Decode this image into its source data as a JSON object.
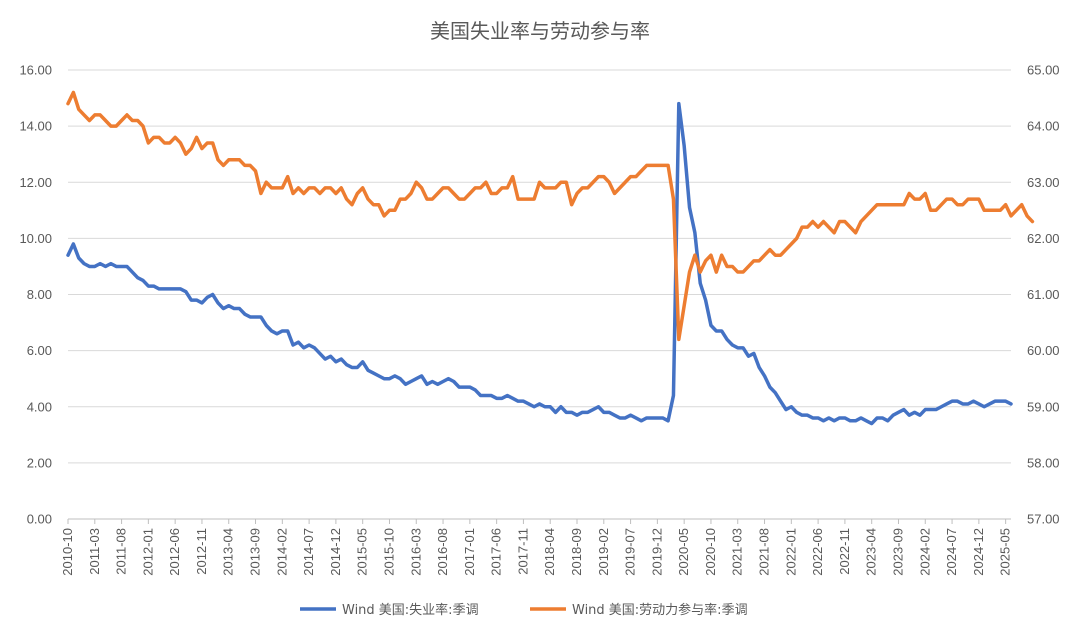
{
  "chart_data": {
    "type": "line",
    "title": "美国失业率与劳动参与率",
    "x_tick_labels": [
      "2010-10",
      "2011-03",
      "2011-08",
      "2012-01",
      "2012-06",
      "2012-11",
      "2013-04",
      "2013-09",
      "2014-02",
      "2014-07",
      "2014-12",
      "2015-05",
      "2015-10",
      "2016-03",
      "2016-08",
      "2017-01",
      "2017-06",
      "2017-11",
      "2018-04",
      "2018-09",
      "2019-02",
      "2019-07",
      "2019-12",
      "2020-05",
      "2020-10",
      "2021-03",
      "2021-08",
      "2022-01",
      "2022-06",
      "2022-11",
      "2023-04",
      "2023-09",
      "2024-02",
      "2024-07",
      "2024-12",
      "2025-05"
    ],
    "y_left": {
      "range": [
        0,
        16
      ],
      "ticks": [
        "0.00",
        "2.00",
        "4.00",
        "6.00",
        "8.00",
        "10.00",
        "12.00",
        "14.00",
        "16.00"
      ]
    },
    "y_right": {
      "range": [
        57,
        65
      ],
      "ticks": [
        "57.00",
        "58.00",
        "59.00",
        "60.00",
        "61.00",
        "62.00",
        "63.00",
        "64.00",
        "65.00"
      ]
    },
    "grid": true,
    "legend_position": "bottom",
    "x_start": "2010-10",
    "series": [
      {
        "name": "Wind 美国:失业率:季调",
        "axis": "left",
        "color": "#4472C4",
        "values": [
          9.4,
          9.8,
          9.3,
          9.1,
          9.0,
          9.0,
          9.1,
          9.0,
          9.1,
          9.0,
          9.0,
          9.0,
          8.8,
          8.6,
          8.5,
          8.3,
          8.3,
          8.2,
          8.2,
          8.2,
          8.2,
          8.2,
          8.1,
          7.8,
          7.8,
          7.7,
          7.9,
          8.0,
          7.7,
          7.5,
          7.6,
          7.5,
          7.5,
          7.3,
          7.2,
          7.2,
          7.2,
          6.9,
          6.7,
          6.6,
          6.7,
          6.7,
          6.2,
          6.3,
          6.1,
          6.2,
          6.1,
          5.9,
          5.7,
          5.8,
          5.6,
          5.7,
          5.5,
          5.4,
          5.4,
          5.6,
          5.3,
          5.2,
          5.1,
          5.0,
          5.0,
          5.1,
          5.0,
          4.8,
          4.9,
          5.0,
          5.1,
          4.8,
          4.9,
          4.8,
          4.9,
          5.0,
          4.9,
          4.7,
          4.7,
          4.7,
          4.6,
          4.4,
          4.4,
          4.4,
          4.3,
          4.3,
          4.4,
          4.3,
          4.2,
          4.2,
          4.1,
          4.0,
          4.1,
          4.0,
          4.0,
          3.8,
          4.0,
          3.8,
          3.8,
          3.7,
          3.8,
          3.8,
          3.9,
          4.0,
          3.8,
          3.8,
          3.7,
          3.6,
          3.6,
          3.7,
          3.6,
          3.5,
          3.6,
          3.6,
          3.6,
          3.6,
          3.5,
          4.4,
          14.8,
          13.3,
          11.1,
          10.2,
          8.4,
          7.8,
          6.9,
          6.7,
          6.7,
          6.4,
          6.2,
          6.1,
          6.1,
          5.8,
          5.9,
          5.4,
          5.1,
          4.7,
          4.5,
          4.2,
          3.9,
          4.0,
          3.8,
          3.7,
          3.7,
          3.6,
          3.6,
          3.5,
          3.6,
          3.5,
          3.6,
          3.6,
          3.5,
          3.5,
          3.6,
          3.5,
          3.4,
          3.6,
          3.6,
          3.5,
          3.7,
          3.8,
          3.9,
          3.7,
          3.8,
          3.7,
          3.9,
          3.9,
          3.9,
          4.0,
          4.1,
          4.2,
          4.2,
          4.1,
          4.1,
          4.2,
          4.1,
          4.0,
          4.1,
          4.2,
          4.2,
          4.2,
          4.1
        ]
      },
      {
        "name": "Wind 美国:劳动力参与率:季调",
        "axis": "right",
        "color": "#ED7D31",
        "values": [
          64.4,
          64.6,
          64.3,
          64.2,
          64.1,
          64.2,
          64.2,
          64.1,
          64.0,
          64.0,
          64.1,
          64.2,
          64.1,
          64.1,
          64.0,
          63.7,
          63.8,
          63.8,
          63.7,
          63.7,
          63.8,
          63.7,
          63.5,
          63.6,
          63.8,
          63.6,
          63.7,
          63.7,
          63.4,
          63.3,
          63.4,
          63.4,
          63.4,
          63.3,
          63.3,
          63.2,
          62.8,
          63.0,
          62.9,
          62.9,
          62.9,
          63.1,
          62.8,
          62.9,
          62.8,
          62.9,
          62.9,
          62.8,
          62.9,
          62.9,
          62.8,
          62.9,
          62.7,
          62.6,
          62.8,
          62.9,
          62.7,
          62.6,
          62.6,
          62.4,
          62.5,
          62.5,
          62.7,
          62.7,
          62.8,
          63.0,
          62.9,
          62.7,
          62.7,
          62.8,
          62.9,
          62.9,
          62.8,
          62.7,
          62.7,
          62.8,
          62.9,
          62.9,
          63.0,
          62.8,
          62.8,
          62.9,
          62.9,
          63.1,
          62.7,
          62.7,
          62.7,
          62.7,
          63.0,
          62.9,
          62.9,
          62.9,
          63.0,
          63.0,
          62.6,
          62.8,
          62.9,
          62.9,
          63.0,
          63.1,
          63.1,
          63.0,
          62.8,
          62.9,
          63.0,
          63.1,
          63.1,
          63.2,
          63.3,
          63.3,
          63.3,
          63.3,
          63.3,
          62.7,
          60.2,
          60.8,
          61.4,
          61.7,
          61.4,
          61.6,
          61.7,
          61.4,
          61.7,
          61.5,
          61.5,
          61.4,
          61.4,
          61.5,
          61.6,
          61.6,
          61.7,
          61.8,
          61.7,
          61.7,
          61.8,
          61.9,
          62.0,
          62.2,
          62.2,
          62.3,
          62.2,
          62.3,
          62.2,
          62.1,
          62.3,
          62.3,
          62.2,
          62.1,
          62.3,
          62.4,
          62.5,
          62.6,
          62.6,
          62.6,
          62.6,
          62.6,
          62.6,
          62.8,
          62.7,
          62.7,
          62.8,
          62.5,
          62.5,
          62.6,
          62.7,
          62.7,
          62.6,
          62.6,
          62.7,
          62.7,
          62.7,
          62.5,
          62.5,
          62.5,
          62.5,
          62.6,
          62.4,
          62.5,
          62.6,
          62.4,
          62.3
        ]
      }
    ]
  }
}
